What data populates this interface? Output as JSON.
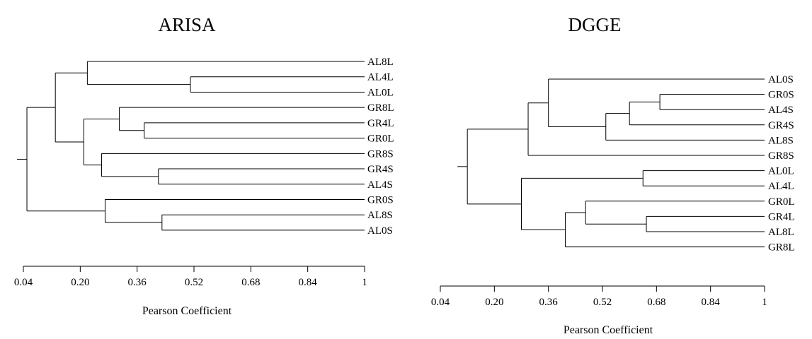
{
  "chart_data": [
    {
      "type": "dendrogram",
      "title": "ARISA",
      "xlabel": "Pearson Coefficient",
      "xlim": [
        0.04,
        1
      ],
      "xticks": [
        "0.04",
        "0.20",
        "0.36",
        "0.52",
        "0.68",
        "0.84",
        "1"
      ],
      "leaves": [
        "AL8L",
        "AL4L",
        "AL0L",
        "GR8L",
        "GR4L",
        "GR0L",
        "GR8S",
        "GR4S",
        "AL4S",
        "GR0S",
        "AL8S",
        "AL0S"
      ],
      "merges": [
        {
          "id": "n1",
          "children": [
            "AL4L",
            "AL0L"
          ],
          "height": 0.51
        },
        {
          "id": "n2",
          "children": [
            "AL8L",
            "n1"
          ],
          "height": 0.22
        },
        {
          "id": "n3",
          "children": [
            "GR4L",
            "GR0L"
          ],
          "height": 0.38
        },
        {
          "id": "n4",
          "children": [
            "GR8L",
            "n3"
          ],
          "height": 0.31
        },
        {
          "id": "n5",
          "children": [
            "GR4S",
            "AL4S"
          ],
          "height": 0.42
        },
        {
          "id": "n6",
          "children": [
            "GR8S",
            "n5"
          ],
          "height": 0.26
        },
        {
          "id": "n7",
          "children": [
            "n4",
            "n6"
          ],
          "height": 0.21
        },
        {
          "id": "n8",
          "children": [
            "n2",
            "n7"
          ],
          "height": 0.13
        },
        {
          "id": "n9",
          "children": [
            "AL8S",
            "AL0S"
          ],
          "height": 0.43
        },
        {
          "id": "n10",
          "children": [
            "GR0S",
            "n9"
          ],
          "height": 0.27
        },
        {
          "id": "n11",
          "children": [
            "n8",
            "n10"
          ],
          "height": 0.05
        }
      ]
    },
    {
      "type": "dendrogram",
      "title": "DGGE",
      "xlabel": "Pearson Coefficient",
      "xlim": [
        0.04,
        1
      ],
      "xticks": [
        "0.04",
        "0.20",
        "0.36",
        "0.52",
        "0.68",
        "0.84",
        "1"
      ],
      "leaves": [
        "AL0S",
        "GR0S",
        "AL4S",
        "GR4S",
        "AL8S",
        "GR8S",
        "AL0L",
        "AL4L",
        "GR0L",
        "GR4L",
        "AL8L",
        "GR8L"
      ],
      "merges": [
        {
          "id": "m1",
          "children": [
            "GR0S",
            "AL4S"
          ],
          "height": 0.69
        },
        {
          "id": "m2",
          "children": [
            "m1",
            "GR4S"
          ],
          "height": 0.6
        },
        {
          "id": "m3",
          "children": [
            "m2",
            "AL8S"
          ],
          "height": 0.53
        },
        {
          "id": "m4",
          "children": [
            "AL0S",
            "m3"
          ],
          "height": 0.36
        },
        {
          "id": "m5",
          "children": [
            "m4",
            "GR8S"
          ],
          "height": 0.3
        },
        {
          "id": "m6",
          "children": [
            "AL0L",
            "AL4L"
          ],
          "height": 0.64
        },
        {
          "id": "m7",
          "children": [
            "GR4L",
            "AL8L"
          ],
          "height": 0.65
        },
        {
          "id": "m8",
          "children": [
            "GR0L",
            "m7"
          ],
          "height": 0.47
        },
        {
          "id": "m9",
          "children": [
            "m8",
            "GR8L"
          ],
          "height": 0.41
        },
        {
          "id": "m10",
          "children": [
            "m6",
            "m9"
          ],
          "height": 0.28
        },
        {
          "id": "m11",
          "children": [
            "m5",
            "m10"
          ],
          "height": 0.12
        }
      ]
    }
  ]
}
